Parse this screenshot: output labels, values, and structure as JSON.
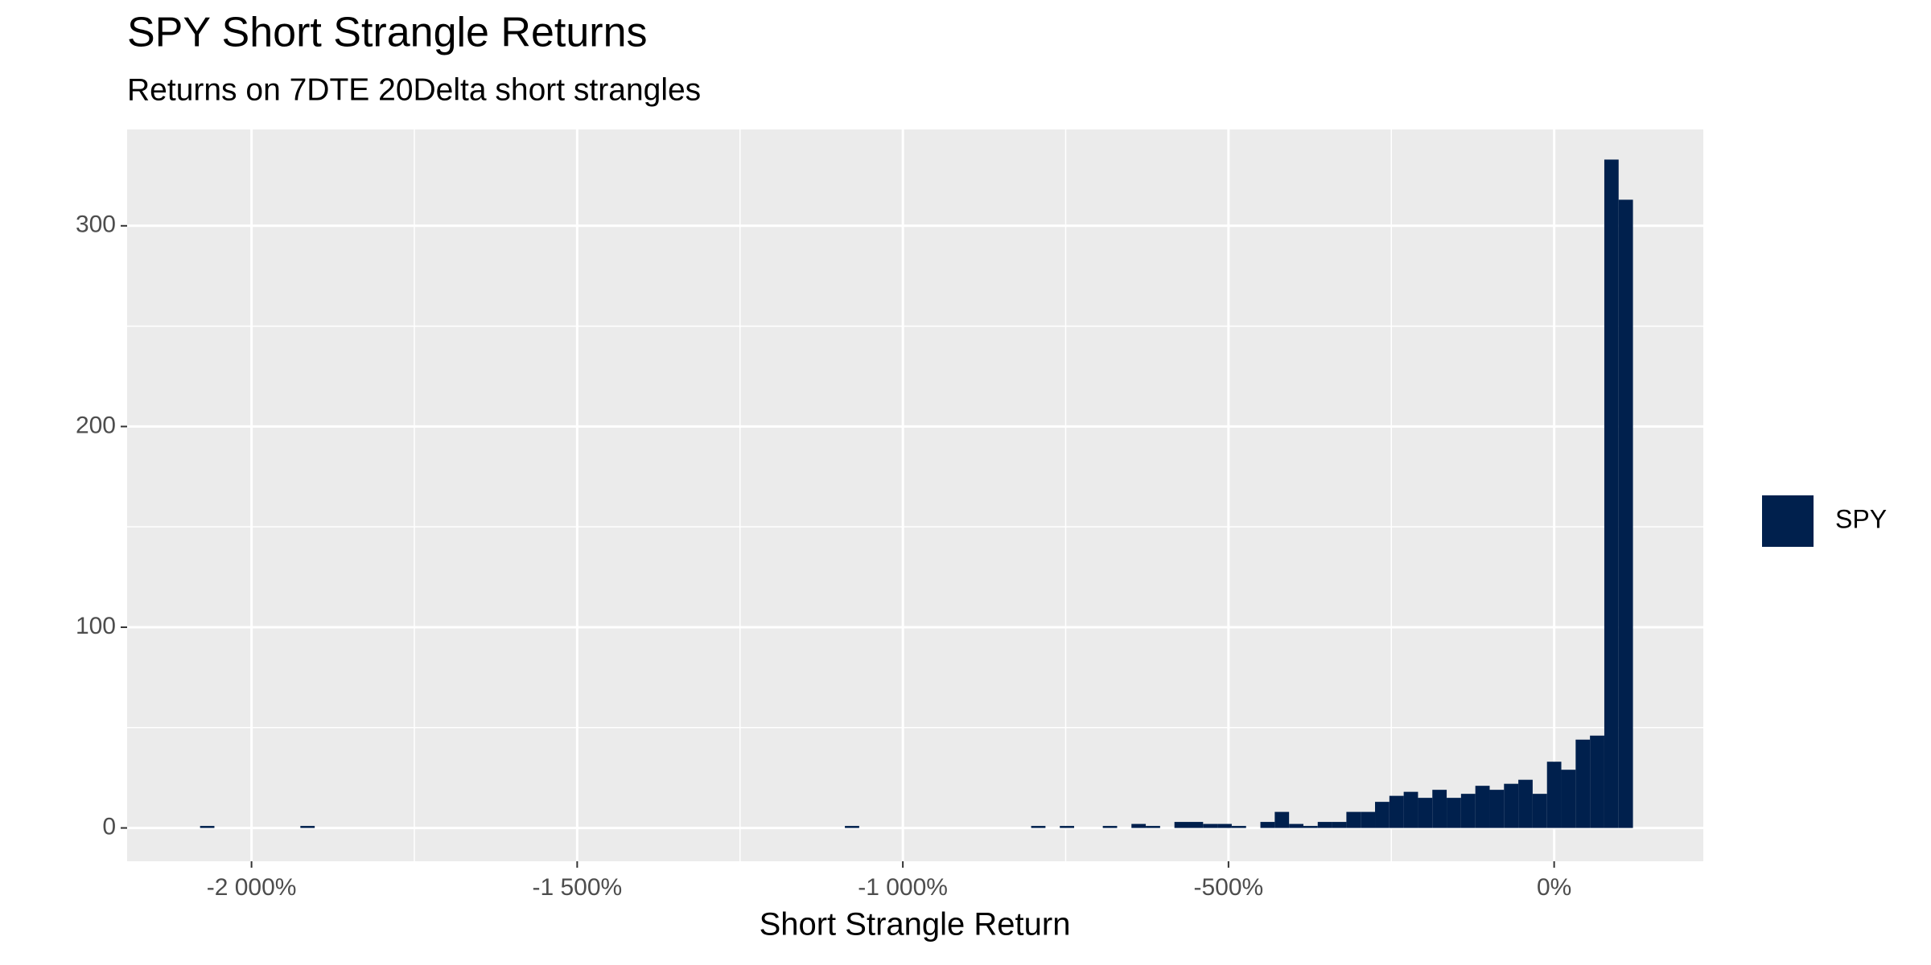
{
  "chart_data": {
    "type": "histogram",
    "title": "SPY Short Strangle Returns",
    "subtitle": "Returns on 7DTE 20Delta short strangles",
    "x_label": "Short Strangle Return",
    "bins": [
      -2079,
      -2057,
      -2035,
      -2013,
      -1991,
      -1969,
      -1947,
      -1925,
      -1903,
      -1881,
      -1859,
      -1837,
      -1815,
      -1793,
      -1771,
      -1749,
      -1727,
      -1705,
      -1683,
      -1661,
      -1639,
      -1617,
      -1595,
      -1573,
      -1551,
      -1529,
      -1507,
      -1485,
      -1463,
      -1441,
      -1419,
      -1397,
      -1375,
      -1353,
      -1331,
      -1309,
      -1287,
      -1265,
      -1243,
      -1221,
      -1199,
      -1177,
      -1155,
      -1133,
      -1111,
      -1089,
      -1067,
      -1045,
      -1023,
      -1001,
      -979,
      -957,
      -935,
      -913,
      -891,
      -869,
      -847,
      -825,
      -803,
      -781,
      -759,
      -737,
      -715,
      -693,
      -671,
      -649,
      -627,
      -605,
      -583,
      -561,
      -539,
      -517,
      -495,
      -473,
      -451,
      -429,
      -407,
      -385,
      -363,
      -341,
      -319,
      -297,
      -275,
      -253,
      -231,
      -209,
      -187,
      -165,
      -143,
      -121,
      -99,
      -77,
      -55,
      -33,
      -11,
      11,
      33,
      55,
      77,
      99,
      121
    ],
    "series": [
      {
        "name": "SPY",
        "color": "#00204d",
        "values": [
          1,
          0,
          0,
          0,
          0,
          0,
          0,
          1,
          0,
          0,
          0,
          0,
          0,
          0,
          0,
          0,
          0,
          0,
          0,
          0,
          0,
          0,
          0,
          0,
          0,
          0,
          0,
          0,
          0,
          0,
          0,
          0,
          0,
          0,
          0,
          0,
          0,
          0,
          0,
          0,
          0,
          0,
          0,
          0,
          0,
          1,
          0,
          0,
          0,
          0,
          0,
          0,
          0,
          0,
          0,
          0,
          0,
          0,
          1,
          0,
          1,
          0,
          0,
          1,
          0,
          2,
          1,
          0,
          3,
          3,
          2,
          2,
          1,
          0,
          3,
          8,
          2,
          1,
          3,
          3,
          8,
          8,
          13,
          16,
          18,
          15,
          19,
          15,
          17,
          21,
          19,
          22,
          24,
          17,
          33,
          29,
          44,
          46,
          333,
          313
        ]
      }
    ],
    "xlim": [
      -2191,
      229
    ],
    "xticks": [
      {
        "value": -2000,
        "label": "-2 000%"
      },
      {
        "value": -1500,
        "label": "-1 500%"
      },
      {
        "value": -1000,
        "label": "-1 000%"
      },
      {
        "value": -500,
        "label": "-500%"
      },
      {
        "value": 0,
        "label": "0%"
      }
    ],
    "ylim": [
      -16.6,
      348
    ],
    "yticks": [
      0,
      100,
      200,
      300
    ],
    "grid": true
  }
}
